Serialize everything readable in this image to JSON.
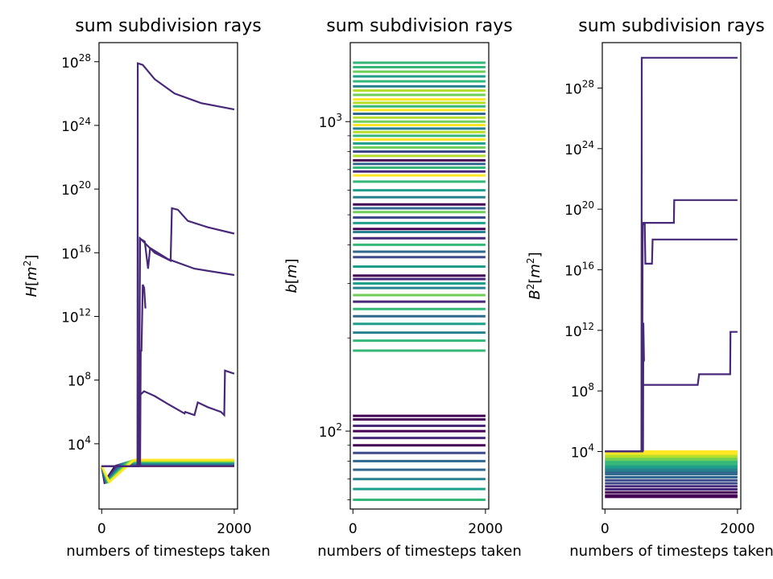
{
  "chart_data": [
    {
      "type": "line",
      "title": "sum subdivision rays",
      "xlabel": "numbers of timesteps taken",
      "ylabel": "H[m^2]",
      "ylabel_base": "H",
      "ylabel_unit": "m",
      "ylabel_unit_exp": "2",
      "yscale": "log",
      "xlim": [
        -40,
        2050
      ],
      "ylim_exp": [
        -0.1,
        29.2
      ],
      "xticks": [
        0,
        2000
      ],
      "ytick_exponents": [
        4,
        8,
        12,
        16,
        20,
        24,
        28
      ],
      "colormap": [
        "#440154",
        "#482878",
        "#3e4989",
        "#31688e",
        "#26828e",
        "#1f9e89",
        "#35b779",
        "#6ece58",
        "#b5de2b",
        "#fde725"
      ],
      "series": [
        {
          "values_exp": [
            [
              0,
              2.6
            ],
            [
              540,
              2.6
            ],
            [
              545,
              27.9
            ],
            [
              620,
              27.8
            ],
            [
              800,
              26.9
            ],
            [
              1100,
              26.0
            ],
            [
              1500,
              25.4
            ],
            [
              2000,
              25.0
            ]
          ]
        },
        {
          "values_exp": [
            [
              0,
              2.6
            ],
            [
              560,
              2.6
            ],
            [
              580,
              16.9
            ],
            [
              800,
              16.0
            ],
            [
              1040,
              15.5
            ],
            [
              1060,
              18.8
            ],
            [
              1150,
              18.7
            ],
            [
              1300,
              18.0
            ],
            [
              1600,
              17.6
            ],
            [
              2000,
              17.2
            ]
          ]
        },
        {
          "values_exp": [
            [
              0,
              2.6
            ],
            [
              560,
              2.6
            ],
            [
              575,
              16.9
            ],
            [
              650,
              16.7
            ],
            [
              700,
              15.0
            ],
            [
              730,
              16.3
            ],
            [
              1000,
              15.6
            ],
            [
              1400,
              15.0
            ],
            [
              2000,
              14.6
            ]
          ]
        },
        {
          "values_exp": [
            [
              0,
              2.6
            ],
            [
              555,
              2.6
            ],
            [
              560,
              7.0
            ],
            [
              640,
              7.3
            ],
            [
              800,
              7.0
            ],
            [
              1000,
              6.5
            ],
            [
              1250,
              5.9
            ],
            [
              1260,
              6.0
            ],
            [
              1400,
              5.8
            ],
            [
              1450,
              6.6
            ],
            [
              1600,
              6.3
            ],
            [
              1800,
              6.0
            ],
            [
              1850,
              5.8
            ],
            [
              1860,
              8.6
            ],
            [
              2000,
              8.4
            ]
          ]
        },
        {
          "values_exp": [
            [
              0,
              2.6
            ],
            [
              580,
              2.6
            ],
            [
              590,
              9.9
            ],
            [
              600,
              9.8
            ],
            [
              620,
              14.0
            ],
            [
              640,
              13.8
            ],
            [
              660,
              12.5
            ]
          ]
        }
      ],
      "band": {
        "start": 2.6,
        "dip": 1.6,
        "plateau_low": 2.6,
        "plateau_high": 3.0
      }
    },
    {
      "type": "line",
      "title": "sum subdivision rays",
      "xlabel": "numbers of timesteps taken",
      "ylabel": "b[m]",
      "ylabel_base": "b",
      "ylabel_unit": "m",
      "yscale": "log",
      "xlim": [
        -40,
        2050
      ],
      "ylim": [
        56,
        1800
      ],
      "xticks": [
        0,
        2000
      ],
      "ytick_exponents": [
        2,
        3
      ],
      "colormap": [
        "#440154",
        "#482878",
        "#3e4989",
        "#31688e",
        "#26828e",
        "#1f9e89",
        "#35b779",
        "#6ece58",
        "#b5de2b",
        "#fde725"
      ],
      "hlines": [
        {
          "y": 1550,
          "c": 6
        },
        {
          "y": 1500,
          "c": 6
        },
        {
          "y": 1450,
          "c": 7
        },
        {
          "y": 1400,
          "c": 5
        },
        {
          "y": 1350,
          "c": 6
        },
        {
          "y": 1300,
          "c": 4
        },
        {
          "y": 1260,
          "c": 8
        },
        {
          "y": 1220,
          "c": 7
        },
        {
          "y": 1180,
          "c": 9
        },
        {
          "y": 1150,
          "c": 8
        },
        {
          "y": 1120,
          "c": 6
        },
        {
          "y": 1090,
          "c": 9
        },
        {
          "y": 1060,
          "c": 3
        },
        {
          "y": 1030,
          "c": 8
        },
        {
          "y": 1000,
          "c": 7
        },
        {
          "y": 975,
          "c": 9
        },
        {
          "y": 950,
          "c": 4
        },
        {
          "y": 925,
          "c": 8
        },
        {
          "y": 900,
          "c": 6
        },
        {
          "y": 875,
          "c": 9
        },
        {
          "y": 850,
          "c": 5
        },
        {
          "y": 825,
          "c": 7
        },
        {
          "y": 800,
          "c": 2
        },
        {
          "y": 775,
          "c": 8
        },
        {
          "y": 750,
          "c": 0
        },
        {
          "y": 730,
          "c": 3
        },
        {
          "y": 710,
          "c": 6
        },
        {
          "y": 690,
          "c": 1
        },
        {
          "y": 670,
          "c": 9
        },
        {
          "y": 640,
          "c": 6
        },
        {
          "y": 600,
          "c": 5
        },
        {
          "y": 570,
          "c": 4
        },
        {
          "y": 540,
          "c": 0
        },
        {
          "y": 525,
          "c": 3
        },
        {
          "y": 510,
          "c": 7
        },
        {
          "y": 490,
          "c": 2
        },
        {
          "y": 470,
          "c": 5
        },
        {
          "y": 450,
          "c": 0
        },
        {
          "y": 440,
          "c": 4
        },
        {
          "y": 420,
          "c": 1
        },
        {
          "y": 400,
          "c": 6
        },
        {
          "y": 380,
          "c": 3
        },
        {
          "y": 365,
          "c": 2
        },
        {
          "y": 340,
          "c": 5
        },
        {
          "y": 318,
          "c": 0
        },
        {
          "y": 310,
          "c": 1
        },
        {
          "y": 300,
          "c": 5
        },
        {
          "y": 290,
          "c": 4
        },
        {
          "y": 275,
          "c": 7
        },
        {
          "y": 262,
          "c": 1
        },
        {
          "y": 248,
          "c": 6
        },
        {
          "y": 235,
          "c": 3
        },
        {
          "y": 222,
          "c": 5
        },
        {
          "y": 208,
          "c": 4
        },
        {
          "y": 196,
          "c": 6
        },
        {
          "y": 182,
          "c": 6
        },
        {
          "y": 112,
          "c": 0
        },
        {
          "y": 109,
          "c": 0
        },
        {
          "y": 104,
          "c": 1
        },
        {
          "y": 100,
          "c": 0
        },
        {
          "y": 95,
          "c": 1
        },
        {
          "y": 90,
          "c": 0
        },
        {
          "y": 85,
          "c": 2
        },
        {
          "y": 80,
          "c": 3
        },
        {
          "y": 75,
          "c": 3
        },
        {
          "y": 70,
          "c": 4
        },
        {
          "y": 65,
          "c": 5
        },
        {
          "y": 60,
          "c": 6
        }
      ]
    },
    {
      "type": "line",
      "title": "sum subdivision rays",
      "xlabel": "numbers of timesteps taken",
      "ylabel": "B^2[m^2]",
      "ylabel_base": "B",
      "ylabel_base_exp": "2",
      "ylabel_unit": "m",
      "ylabel_unit_exp": "2",
      "yscale": "log",
      "xlim": [
        -40,
        2050
      ],
      "ylim_exp": [
        0.2,
        31.0
      ],
      "xticks": [
        0,
        2000
      ],
      "ytick_exponents": [
        4,
        8,
        12,
        16,
        20,
        24,
        28
      ],
      "colormap": [
        "#440154",
        "#482878",
        "#3e4989",
        "#31688e",
        "#26828e",
        "#1f9e89",
        "#35b779",
        "#6ece58",
        "#b5de2b",
        "#fde725"
      ],
      "series": [
        {
          "values_exp": [
            [
              0,
              4.0
            ],
            [
              550,
              4.0
            ],
            [
              555,
              30.0
            ],
            [
              2000,
              30.0
            ]
          ]
        },
        {
          "values_exp": [
            [
              0,
              4.0
            ],
            [
              560,
              4.0
            ],
            [
              565,
              19.1
            ],
            [
              1040,
              19.1
            ],
            [
              1045,
              20.6
            ],
            [
              2000,
              20.6
            ]
          ]
        },
        {
          "values_exp": [
            [
              0,
              4.0
            ],
            [
              555,
              4.0
            ],
            [
              570,
              19.0
            ],
            [
              600,
              19.0
            ],
            [
              610,
              16.4
            ],
            [
              710,
              16.4
            ],
            [
              720,
              18.0
            ],
            [
              2000,
              18.0
            ]
          ]
        },
        {
          "values_exp": [
            [
              0,
              4.0
            ],
            [
              565,
              4.0
            ],
            [
              570,
              8.4
            ],
            [
              1400,
              8.4
            ],
            [
              1420,
              9.1
            ],
            [
              1890,
              9.1
            ],
            [
              1895,
              11.9
            ],
            [
              2000,
              11.9
            ]
          ]
        },
        {
          "values_exp": [
            [
              575,
              4.0
            ],
            [
              580,
              12.5
            ],
            [
              590,
              10.0
            ],
            [
              600,
              10.0
            ]
          ]
        }
      ],
      "band_levels_exp": [
        4.0,
        3.9,
        3.8,
        3.7,
        3.6,
        3.5,
        3.4,
        3.3,
        3.2,
        3.1,
        3.0,
        2.9,
        2.8,
        2.7,
        2.6,
        2.5,
        2.3,
        2.1,
        1.9,
        1.7,
        1.5,
        1.3,
        1.1,
        1.0
      ]
    }
  ]
}
